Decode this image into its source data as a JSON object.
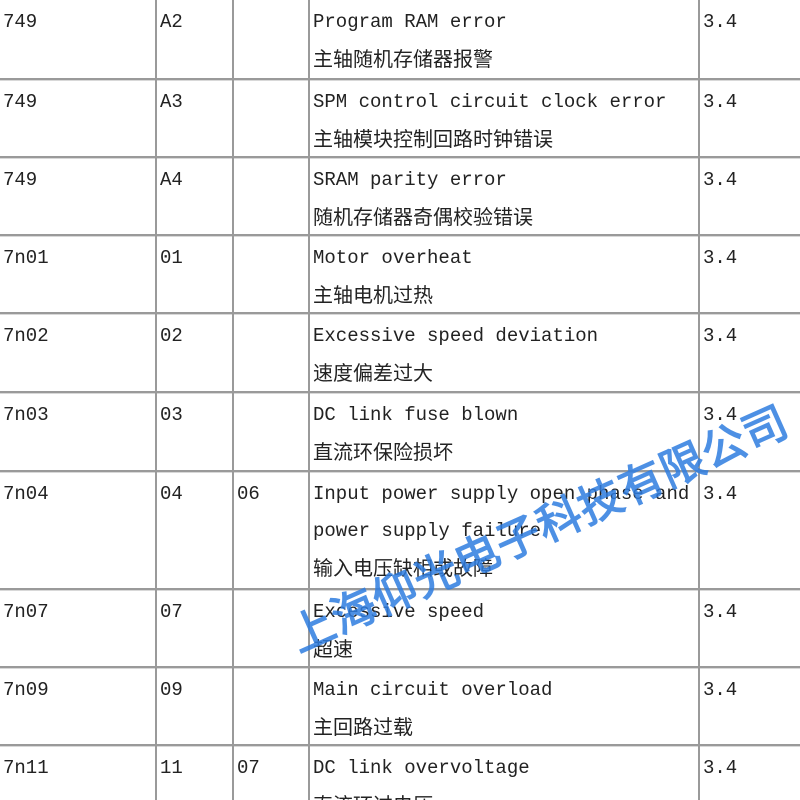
{
  "table": {
    "rows": [
      [
        "749",
        "A2",
        null,
        "Program RAM error",
        "主轴随机存储器报警",
        "3.4"
      ],
      [
        "749",
        "A3",
        null,
        "SPM control circuit clock error",
        "主轴模块控制回路时钟错误",
        "3.4"
      ],
      [
        "749",
        "A4",
        null,
        "SRAM parity error",
        "随机存储器奇偶校验错误",
        "3.4"
      ],
      [
        "7n01",
        "01",
        null,
        "Motor overheat",
        "主轴电机过热",
        "3.4"
      ],
      [
        "7n02",
        "02",
        null,
        "Excessive speed deviation",
        "速度偏差过大",
        "3.4"
      ],
      [
        "7n03",
        "03",
        null,
        "DC link fuse blown",
        "直流环保险损坏",
        "3.4"
      ],
      [
        "7n04",
        "04",
        "06",
        "Input power supply open phase and power supply failure",
        "输入电压缺相或故障",
        "3.4"
      ],
      [
        "7n07",
        "07",
        null,
        "Excessive speed",
        "超速",
        "3.4"
      ],
      [
        "7n09",
        "09",
        null,
        "Main circuit overload",
        "主回路过载",
        "3.4"
      ],
      [
        "7n11",
        "11",
        "07",
        "DC link overvoltage",
        "直流环过电压",
        "3.4"
      ]
    ]
  },
  "watermark": "上海仰光电子科技有限公司"
}
